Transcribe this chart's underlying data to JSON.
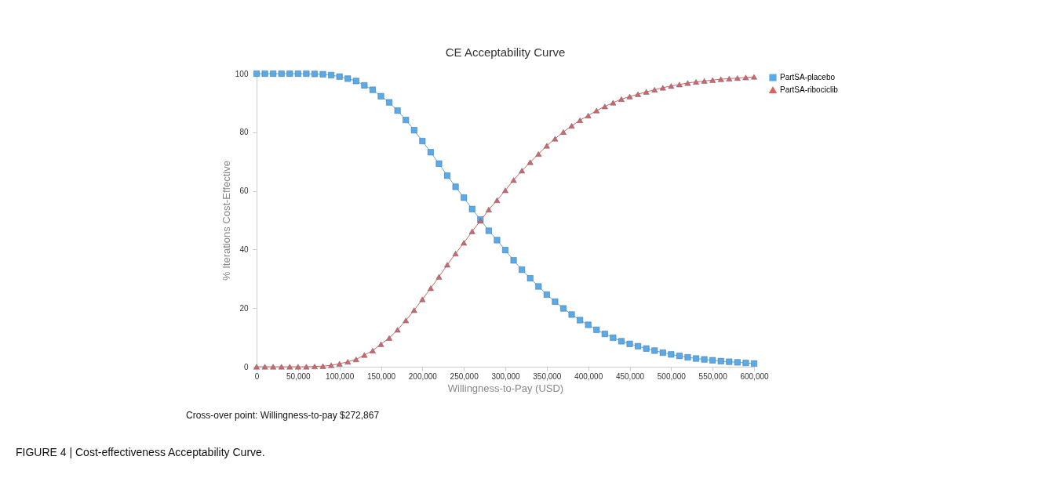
{
  "chart_data": {
    "type": "line",
    "title": "CE Acceptability Curve",
    "xlabel": "Willingness-to-Pay (USD)",
    "ylabel": "% Iterations Cost-Effective",
    "x": [
      0,
      10000,
      20000,
      30000,
      40000,
      50000,
      60000,
      70000,
      80000,
      90000,
      100000,
      110000,
      120000,
      130000,
      140000,
      150000,
      160000,
      170000,
      180000,
      190000,
      200000,
      210000,
      220000,
      230000,
      240000,
      250000,
      260000,
      270000,
      280000,
      290000,
      300000,
      310000,
      320000,
      330000,
      340000,
      350000,
      360000,
      370000,
      380000,
      390000,
      400000,
      410000,
      420000,
      430000,
      440000,
      450000,
      460000,
      470000,
      480000,
      490000,
      500000,
      510000,
      520000,
      530000,
      540000,
      550000,
      560000,
      570000,
      580000,
      590000,
      600000
    ],
    "series": [
      {
        "name": "PartSA-placebo",
        "color": "#5aaae8",
        "marker": "square",
        "values": [
          100,
          100,
          100,
          100,
          100,
          100,
          100,
          99.9,
          99.8,
          99.5,
          99,
          98.3,
          97.5,
          96,
          94.5,
          92.3,
          90.2,
          87.4,
          84.2,
          80.7,
          77,
          73.2,
          69.3,
          65.2,
          61.4,
          57.7,
          53.8,
          50.2,
          46.4,
          43.2,
          39.8,
          36.3,
          33.1,
          30.2,
          27.4,
          24.6,
          22.2,
          19.9,
          17.8,
          15.9,
          14.3,
          12.6,
          11.2,
          9.9,
          8.7,
          7.8,
          7,
          6.2,
          5.5,
          4.8,
          4.2,
          3.7,
          3.2,
          2.8,
          2.5,
          2.2,
          1.9,
          1.7,
          1.5,
          1.3,
          1.1
        ]
      },
      {
        "name": "PartSA-ribociclib",
        "color": "#e0605a",
        "marker": "triangle",
        "values": [
          0,
          0,
          0,
          0,
          0,
          0,
          0,
          0.1,
          0.2,
          0.5,
          1,
          1.7,
          2.5,
          4,
          5.5,
          7.7,
          9.8,
          12.6,
          15.8,
          19.3,
          23,
          26.8,
          30.7,
          34.8,
          38.6,
          42.3,
          46.2,
          49.8,
          53.6,
          56.8,
          60.2,
          63.7,
          66.9,
          69.8,
          72.6,
          75.4,
          77.8,
          80.1,
          82.2,
          84.1,
          85.7,
          87.4,
          88.8,
          90.1,
          91.3,
          92.2,
          93,
          93.8,
          94.5,
          95.2,
          95.8,
          96.3,
          96.8,
          97.2,
          97.5,
          97.8,
          98.1,
          98.3,
          98.5,
          98.7,
          98.9
        ]
      }
    ],
    "xlim": [
      0,
      600000
    ],
    "xticks": [
      0,
      {
        "value": 50000,
        "label": "50,000"
      },
      {
        "value": 100000,
        "label": "100,000"
      },
      {
        "value": 150000,
        "label": "150,000"
      },
      {
        "value": 200000,
        "label": "200,000"
      },
      {
        "value": 250000,
        "label": "250,000"
      },
      {
        "value": 300000,
        "label": "300,000"
      },
      {
        "value": 350000,
        "label": "350,000"
      },
      {
        "value": 400000,
        "label": "400,000"
      },
      {
        "value": 450000,
        "label": "450,000"
      },
      {
        "value": 500000,
        "label": "500,000"
      },
      {
        "value": 550000,
        "label": "550,000"
      },
      {
        "value": 600000,
        "label": "600,000"
      }
    ],
    "ylim": [
      0,
      100
    ],
    "yticks": [
      0,
      20,
      40,
      60,
      80,
      100
    ],
    "grid": false,
    "legend": "top right",
    "line_style": "solid",
    "annotations": [
      "Cross-over point: Willingness-to-pay $272,867",
      "FIGURE 4 | Cost-effectiveness Acceptability Curve."
    ]
  }
}
